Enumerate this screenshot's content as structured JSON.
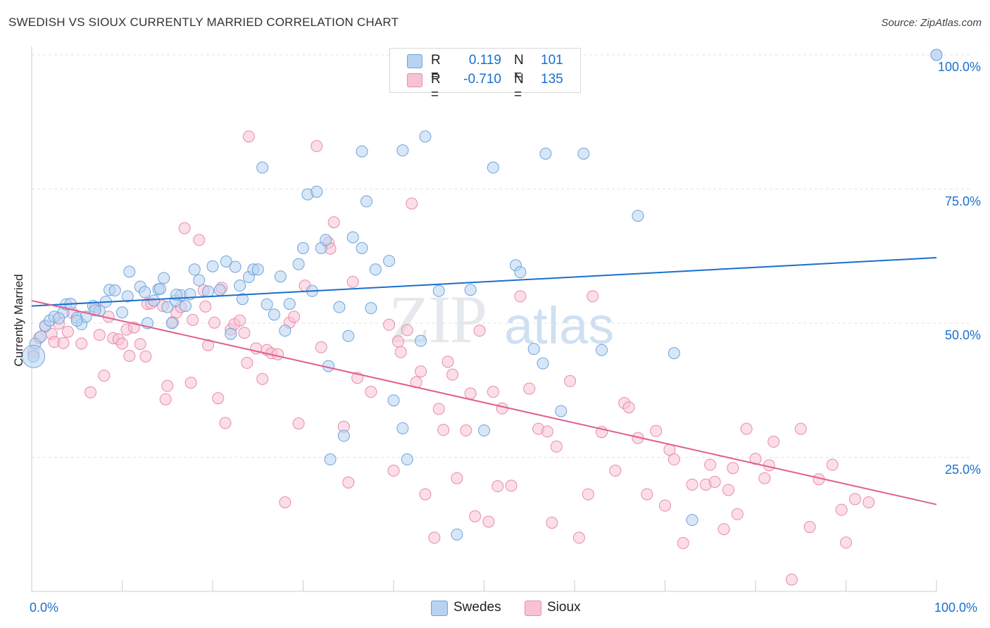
{
  "title": "SWEDISH VS SIOUX CURRENTLY MARRIED CORRELATION CHART",
  "source": "Source: ZipAtlas.com",
  "watermark": {
    "zip": "ZIP",
    "atlas": "atlas"
  },
  "legend": {
    "rows": [
      {
        "r_label": "R =",
        "r_value": "0.119",
        "n_label": "N =",
        "n_value": "101"
      },
      {
        "r_label": "R =",
        "r_value": "-0.710",
        "n_label": "N =",
        "n_value": "135"
      }
    ]
  },
  "colors": {
    "swedes_fill": "#b8d3f0",
    "swedes_stroke": "#6fa3dc",
    "swedes_line": "#1a6fcf",
    "sioux_fill": "#f7c3d3",
    "sioux_stroke": "#e98bab",
    "sioux_line": "#e0608f",
    "tick_text": "#1a6fcf"
  },
  "chart_data": {
    "type": "scatter",
    "title": "SWEDISH VS SIOUX CURRENTLY MARRIED CORRELATION CHART",
    "xlabel": "",
    "ylabel": "Currently Married",
    "xlim": [
      0,
      100
    ],
    "ylim": [
      0,
      100
    ],
    "x_tick_labels": [
      "0.0%",
      "100.0%"
    ],
    "y_tick_labels": [
      "25.0%",
      "50.0%",
      "75.0%",
      "100.0%"
    ],
    "y_ticks": [
      25,
      50,
      75,
      100
    ],
    "grid": true,
    "legend_position": "top-center",
    "series": [
      {
        "name": "Swedes",
        "r": 0.119,
        "n": 101,
        "trend": {
          "x": [
            0,
            100
          ],
          "y": [
            53.2,
            62.2
          ]
        },
        "points": [
          [
            0.2,
            43.8
          ],
          [
            0.4,
            46.2
          ],
          [
            1.5,
            49.5
          ],
          [
            2.0,
            50.5
          ],
          [
            2.5,
            51.2
          ],
          [
            3.5,
            52.0
          ],
          [
            3.8,
            53.5
          ],
          [
            4.3,
            53.6
          ],
          [
            5.0,
            51.0
          ],
          [
            5.5,
            49.8
          ],
          [
            6.0,
            51.2
          ],
          [
            6.8,
            53.2
          ],
          [
            7.5,
            52.3
          ],
          [
            8.2,
            54.0
          ],
          [
            8.6,
            56.2
          ],
          [
            9.2,
            56.1
          ],
          [
            10.0,
            52.0
          ],
          [
            10.6,
            55.0
          ],
          [
            10.8,
            59.6
          ],
          [
            12.0,
            56.8
          ],
          [
            12.5,
            55.8
          ],
          [
            12.8,
            50.0
          ],
          [
            13.5,
            54.2
          ],
          [
            14.0,
            56.3
          ],
          [
            14.2,
            56.4
          ],
          [
            14.6,
            58.4
          ],
          [
            15.0,
            53.0
          ],
          [
            15.5,
            50.0
          ],
          [
            15.9,
            54.2
          ],
          [
            16.5,
            55.2
          ],
          [
            17.0,
            53.2
          ],
          [
            17.5,
            55.4
          ],
          [
            18.0,
            60.0
          ],
          [
            18.5,
            58.0
          ],
          [
            19.5,
            55.9
          ],
          [
            20.0,
            60.6
          ],
          [
            20.8,
            56.2
          ],
          [
            21.5,
            61.5
          ],
          [
            22.0,
            48.0
          ],
          [
            22.5,
            60.5
          ],
          [
            23.0,
            57.0
          ],
          [
            23.3,
            54.5
          ],
          [
            24.0,
            58.6
          ],
          [
            24.5,
            60.0
          ],
          [
            25.0,
            60.0
          ],
          [
            25.5,
            79.0
          ],
          [
            26.0,
            53.5
          ],
          [
            26.8,
            51.6
          ],
          [
            27.5,
            58.7
          ],
          [
            28.0,
            48.6
          ],
          [
            28.5,
            53.6
          ],
          [
            29.5,
            61.0
          ],
          [
            30.0,
            64.0
          ],
          [
            30.5,
            74.0
          ],
          [
            31.0,
            56.0
          ],
          [
            31.5,
            74.5
          ],
          [
            32.0,
            64.0
          ],
          [
            32.5,
            65.5
          ],
          [
            32.8,
            42.0
          ],
          [
            33.0,
            24.6
          ],
          [
            34.0,
            53.0
          ],
          [
            34.5,
            29.0
          ],
          [
            35.0,
            47.6
          ],
          [
            35.5,
            66.0
          ],
          [
            36.5,
            64.0
          ],
          [
            36.5,
            82.0
          ],
          [
            37.0,
            72.7
          ],
          [
            37.5,
            52.8
          ],
          [
            38.0,
            60.0
          ],
          [
            39.5,
            61.6
          ],
          [
            40.0,
            35.6
          ],
          [
            41.0,
            30.4
          ],
          [
            41.0,
            82.2
          ],
          [
            41.5,
            24.6
          ],
          [
            43.0,
            46.7
          ],
          [
            43.5,
            84.8
          ],
          [
            45.0,
            56.0
          ],
          [
            47.0,
            10.6
          ],
          [
            48.5,
            56.2
          ],
          [
            50.0,
            30.0
          ],
          [
            51.0,
            79.0
          ],
          [
            53.5,
            60.8
          ],
          [
            54.0,
            59.5
          ],
          [
            55.5,
            45.2
          ],
          [
            56.5,
            42.5
          ],
          [
            56.8,
            81.6
          ],
          [
            58.5,
            33.6
          ],
          [
            61.0,
            81.6
          ],
          [
            63.0,
            45.0
          ],
          [
            67.0,
            70.0
          ],
          [
            71.0,
            44.4
          ],
          [
            73.0,
            13.3
          ],
          [
            100.0,
            100.0
          ],
          [
            100.0,
            100.0
          ],
          [
            46.5,
            100.0
          ],
          [
            46.8,
            100.0
          ],
          [
            1.0,
            47.5
          ],
          [
            3.0,
            50.9
          ],
          [
            5.0,
            50.5
          ],
          [
            7.0,
            52.4
          ],
          [
            16.0,
            55.3
          ]
        ]
      },
      {
        "name": "Sioux",
        "r": -0.71,
        "n": 135,
        "trend": {
          "x": [
            0,
            100
          ],
          "y": [
            54.2,
            16.2
          ]
        },
        "points": [
          [
            0.2,
            44.6
          ],
          [
            0.8,
            47.2
          ],
          [
            1.5,
            49.4
          ],
          [
            2.2,
            48.0
          ],
          [
            2.5,
            46.5
          ],
          [
            3.0,
            49.9
          ],
          [
            3.5,
            46.3
          ],
          [
            4.0,
            48.4
          ],
          [
            4.5,
            51.9
          ],
          [
            5.5,
            46.2
          ],
          [
            6.5,
            37.1
          ],
          [
            7.0,
            52.9
          ],
          [
            7.5,
            47.8
          ],
          [
            8.0,
            40.2
          ],
          [
            8.5,
            51.2
          ],
          [
            9.0,
            47.2
          ],
          [
            9.6,
            47.0
          ],
          [
            10.0,
            46.2
          ],
          [
            10.5,
            48.8
          ],
          [
            10.8,
            43.9
          ],
          [
            11.3,
            49.2
          ],
          [
            12.0,
            46.1
          ],
          [
            12.6,
            43.8
          ],
          [
            12.8,
            53.6
          ],
          [
            13.2,
            53.7
          ],
          [
            14.5,
            53.2
          ],
          [
            14.8,
            35.8
          ],
          [
            15.0,
            38.3
          ],
          [
            15.6,
            50.2
          ],
          [
            16.0,
            52.0
          ],
          [
            16.5,
            53.0
          ],
          [
            16.9,
            67.7
          ],
          [
            17.6,
            38.9
          ],
          [
            17.8,
            50.6
          ],
          [
            18.5,
            65.5
          ],
          [
            19.0,
            56.1
          ],
          [
            19.2,
            53.1
          ],
          [
            19.5,
            45.9
          ],
          [
            20.2,
            50.1
          ],
          [
            20.6,
            36.0
          ],
          [
            21.0,
            56.6
          ],
          [
            21.4,
            31.4
          ],
          [
            22.0,
            48.8
          ],
          [
            22.4,
            49.8
          ],
          [
            23.0,
            50.5
          ],
          [
            23.5,
            48.2
          ],
          [
            23.8,
            42.6
          ],
          [
            24.0,
            84.8
          ],
          [
            24.8,
            45.3
          ],
          [
            25.5,
            39.6
          ],
          [
            26.0,
            45.0
          ],
          [
            26.5,
            44.4
          ],
          [
            27.2,
            44.2
          ],
          [
            28.0,
            16.6
          ],
          [
            28.5,
            50.1
          ],
          [
            29.0,
            51.2
          ],
          [
            29.5,
            31.3
          ],
          [
            30.2,
            57.0
          ],
          [
            31.5,
            83.0
          ],
          [
            32.0,
            45.5
          ],
          [
            32.8,
            65.0
          ],
          [
            33.0,
            63.9
          ],
          [
            33.4,
            68.8
          ],
          [
            34.5,
            30.7
          ],
          [
            35.0,
            20.3
          ],
          [
            35.5,
            57.7
          ],
          [
            36.0,
            39.8
          ],
          [
            37.5,
            37.2
          ],
          [
            39.5,
            49.7
          ],
          [
            40.0,
            22.5
          ],
          [
            40.5,
            46.6
          ],
          [
            40.8,
            44.6
          ],
          [
            41.5,
            48.7
          ],
          [
            42.0,
            72.3
          ],
          [
            42.5,
            39.0
          ],
          [
            43.0,
            41.0
          ],
          [
            43.5,
            18.1
          ],
          [
            44.5,
            10.0
          ],
          [
            45.0,
            34.0
          ],
          [
            45.5,
            30.1
          ],
          [
            46.0,
            42.8
          ],
          [
            46.5,
            40.4
          ],
          [
            47.0,
            21.1
          ],
          [
            48.0,
            30.0
          ],
          [
            48.5,
            36.9
          ],
          [
            49.0,
            14.0
          ],
          [
            49.5,
            48.6
          ],
          [
            50.5,
            13.0
          ],
          [
            51.0,
            37.2
          ],
          [
            51.5,
            19.6
          ],
          [
            52.0,
            34.1
          ],
          [
            53.0,
            19.7
          ],
          [
            54.0,
            55.0
          ],
          [
            55.0,
            37.8
          ],
          [
            56.0,
            30.3
          ],
          [
            57.0,
            29.8
          ],
          [
            57.5,
            12.8
          ],
          [
            58.0,
            27.0
          ],
          [
            59.5,
            39.2
          ],
          [
            60.5,
            10.0
          ],
          [
            61.5,
            18.1
          ],
          [
            62.0,
            55.0
          ],
          [
            63.0,
            29.7
          ],
          [
            64.5,
            22.5
          ],
          [
            65.5,
            35.1
          ],
          [
            66.0,
            34.3
          ],
          [
            67.0,
            28.6
          ],
          [
            68.0,
            18.1
          ],
          [
            69.0,
            29.9
          ],
          [
            70.0,
            16.0
          ],
          [
            70.5,
            26.4
          ],
          [
            71.0,
            24.6
          ],
          [
            72.0,
            9.0
          ],
          [
            73.0,
            19.9
          ],
          [
            74.5,
            19.9
          ],
          [
            75.0,
            23.6
          ],
          [
            75.5,
            20.4
          ],
          [
            76.5,
            11.6
          ],
          [
            77.0,
            18.9
          ],
          [
            77.5,
            23.0
          ],
          [
            78.0,
            14.4
          ],
          [
            79.0,
            30.3
          ],
          [
            80.0,
            24.7
          ],
          [
            81.0,
            21.1
          ],
          [
            81.5,
            23.5
          ],
          [
            82.0,
            27.9
          ],
          [
            84.0,
            2.2
          ],
          [
            85.0,
            30.3
          ],
          [
            86.0,
            12.0
          ],
          [
            87.0,
            20.9
          ],
          [
            88.5,
            23.6
          ],
          [
            89.5,
            15.2
          ],
          [
            90.0,
            9.1
          ],
          [
            91.0,
            17.2
          ],
          [
            92.5,
            16.6
          ]
        ]
      }
    ]
  }
}
